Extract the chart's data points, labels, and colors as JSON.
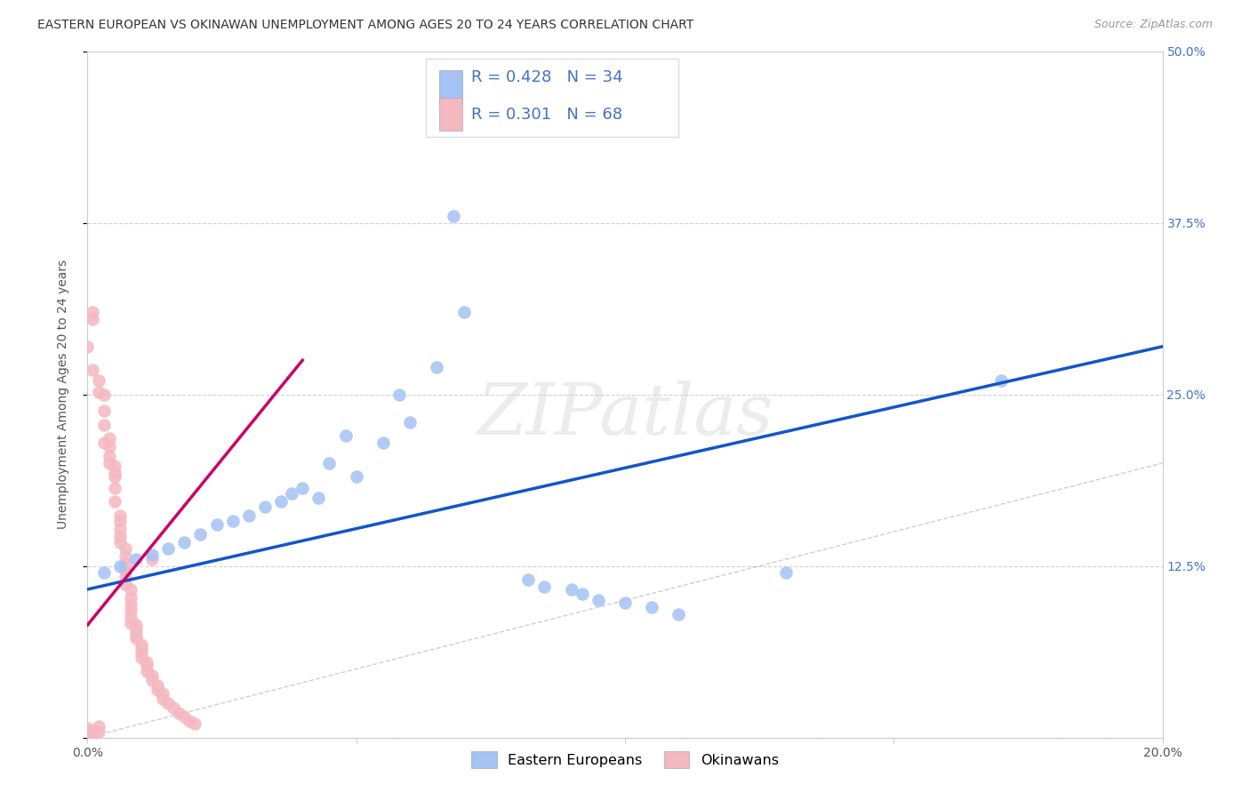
{
  "title": "EASTERN EUROPEAN VS OKINAWAN UNEMPLOYMENT AMONG AGES 20 TO 24 YEARS CORRELATION CHART",
  "source": "Source: ZipAtlas.com",
  "ylabel": "Unemployment Among Ages 20 to 24 years",
  "xlim": [
    0.0,
    0.2
  ],
  "ylim": [
    0.0,
    0.5
  ],
  "xticks": [
    0.0,
    0.05,
    0.1,
    0.15,
    0.2
  ],
  "yticks": [
    0.0,
    0.125,
    0.25,
    0.375,
    0.5
  ],
  "yticklabels_right": [
    "",
    "12.5%",
    "25.0%",
    "37.5%",
    "50.0%"
  ],
  "blue_color": "#a4c2f4",
  "pink_color": "#f4b8c1",
  "blue_line_color": "#1155cc",
  "pink_line_color": "#cc0066",
  "legend_text_color": "#4472c4",
  "R_blue": "0.428",
  "N_blue": "34",
  "R_pink": "0.301",
  "N_pink": "68",
  "blue_scatter": [
    [
      0.003,
      0.12
    ],
    [
      0.006,
      0.125
    ],
    [
      0.009,
      0.13
    ],
    [
      0.012,
      0.133
    ],
    [
      0.015,
      0.138
    ],
    [
      0.018,
      0.142
    ],
    [
      0.021,
      0.148
    ],
    [
      0.024,
      0.155
    ],
    [
      0.027,
      0.158
    ],
    [
      0.03,
      0.162
    ],
    [
      0.033,
      0.168
    ],
    [
      0.036,
      0.172
    ],
    [
      0.038,
      0.178
    ],
    [
      0.04,
      0.182
    ],
    [
      0.043,
      0.175
    ],
    [
      0.045,
      0.2
    ],
    [
      0.048,
      0.22
    ],
    [
      0.05,
      0.19
    ],
    [
      0.055,
      0.215
    ],
    [
      0.058,
      0.25
    ],
    [
      0.06,
      0.23
    ],
    [
      0.065,
      0.27
    ],
    [
      0.068,
      0.38
    ],
    [
      0.07,
      0.31
    ],
    [
      0.082,
      0.115
    ],
    [
      0.085,
      0.11
    ],
    [
      0.09,
      0.108
    ],
    [
      0.092,
      0.105
    ],
    [
      0.095,
      0.1
    ],
    [
      0.1,
      0.098
    ],
    [
      0.105,
      0.095
    ],
    [
      0.11,
      0.09
    ],
    [
      0.13,
      0.12
    ],
    [
      0.17,
      0.26
    ]
  ],
  "blue_trendline": [
    [
      0.0,
      0.108
    ],
    [
      0.2,
      0.285
    ]
  ],
  "pink_scatter": [
    [
      0.0,
      0.285
    ],
    [
      0.001,
      0.305
    ],
    [
      0.001,
      0.31
    ],
    [
      0.001,
      0.268
    ],
    [
      0.002,
      0.252
    ],
    [
      0.002,
      0.26
    ],
    [
      0.003,
      0.25
    ],
    [
      0.003,
      0.238
    ],
    [
      0.003,
      0.228
    ],
    [
      0.003,
      0.215
    ],
    [
      0.004,
      0.218
    ],
    [
      0.004,
      0.212
    ],
    [
      0.004,
      0.205
    ],
    [
      0.004,
      0.2
    ],
    [
      0.005,
      0.193
    ],
    [
      0.005,
      0.198
    ],
    [
      0.005,
      0.19
    ],
    [
      0.005,
      0.182
    ],
    [
      0.005,
      0.172
    ],
    [
      0.006,
      0.162
    ],
    [
      0.006,
      0.158
    ],
    [
      0.006,
      0.152
    ],
    [
      0.006,
      0.147
    ],
    [
      0.006,
      0.142
    ],
    [
      0.007,
      0.138
    ],
    [
      0.007,
      0.132
    ],
    [
      0.007,
      0.127
    ],
    [
      0.007,
      0.122
    ],
    [
      0.007,
      0.117
    ],
    [
      0.007,
      0.112
    ],
    [
      0.008,
      0.108
    ],
    [
      0.008,
      0.102
    ],
    [
      0.008,
      0.097
    ],
    [
      0.008,
      0.093
    ],
    [
      0.008,
      0.088
    ],
    [
      0.008,
      0.083
    ],
    [
      0.009,
      0.082
    ],
    [
      0.009,
      0.078
    ],
    [
      0.009,
      0.075
    ],
    [
      0.009,
      0.072
    ],
    [
      0.01,
      0.068
    ],
    [
      0.01,
      0.065
    ],
    [
      0.01,
      0.062
    ],
    [
      0.01,
      0.058
    ],
    [
      0.011,
      0.055
    ],
    [
      0.011,
      0.052
    ],
    [
      0.011,
      0.048
    ],
    [
      0.012,
      0.045
    ],
    [
      0.012,
      0.042
    ],
    [
      0.012,
      0.13
    ],
    [
      0.013,
      0.038
    ],
    [
      0.013,
      0.035
    ],
    [
      0.014,
      0.032
    ],
    [
      0.014,
      0.028
    ],
    [
      0.015,
      0.025
    ],
    [
      0.016,
      0.022
    ],
    [
      0.017,
      0.018
    ],
    [
      0.018,
      0.015
    ],
    [
      0.019,
      0.012
    ],
    [
      0.02,
      0.01
    ],
    [
      0.0,
      0.007
    ],
    [
      0.001,
      0.005
    ],
    [
      0.002,
      0.008
    ],
    [
      0.0,
      0.003
    ],
    [
      0.001,
      0.002
    ],
    [
      0.002,
      0.004
    ],
    [
      0.0,
      0.0
    ],
    [
      0.001,
      0.0
    ]
  ],
  "pink_trendline": [
    [
      0.0,
      0.082
    ],
    [
      0.04,
      0.275
    ]
  ],
  "diagonal_line": [
    [
      0.0,
      0.0
    ],
    [
      0.2,
      0.2
    ]
  ],
  "watermark": "ZIPatlas",
  "legend_bottom_labels": [
    "Eastern Europeans",
    "Okinawans"
  ]
}
